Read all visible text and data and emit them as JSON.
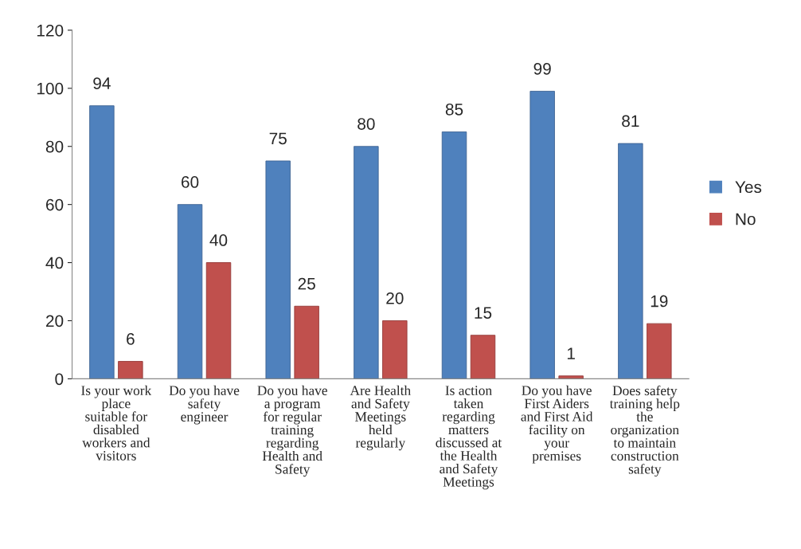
{
  "chart_data": {
    "type": "bar",
    "categories": [
      "Is your work\nplace\nsuitable for\ndisabled\nworkers and\nvisitors",
      "Do you have\nsafety\nengineer",
      "Do you have\na program\nfor regular\ntraining\nregarding\nHealth and\nSafety",
      "Are Health\nand Safety\nMeetings\nheld\nregularly",
      "Is action\ntaken\nregarding\nmatters\ndiscussed at\nthe Health\nand Safety\nMeetings",
      "Do you have\nFirst Aiders\nand First Aid\nfacility on\nyour\npremises",
      "Does safety\ntraining help\nthe\norganization\nto maintain\nconstruction\nsafety"
    ],
    "series": [
      {
        "name": "Yes",
        "color": "#4f81bd",
        "values": [
          94,
          60,
          75,
          80,
          85,
          99,
          81
        ]
      },
      {
        "name": "No",
        "color": "#c0504d",
        "values": [
          6,
          40,
          25,
          20,
          15,
          1,
          19
        ]
      }
    ],
    "ylim": [
      0,
      120
    ],
    "yticks": [
      0,
      20,
      40,
      60,
      80,
      100,
      120
    ],
    "data_labels": true,
    "legend": "right",
    "grid": false
  }
}
